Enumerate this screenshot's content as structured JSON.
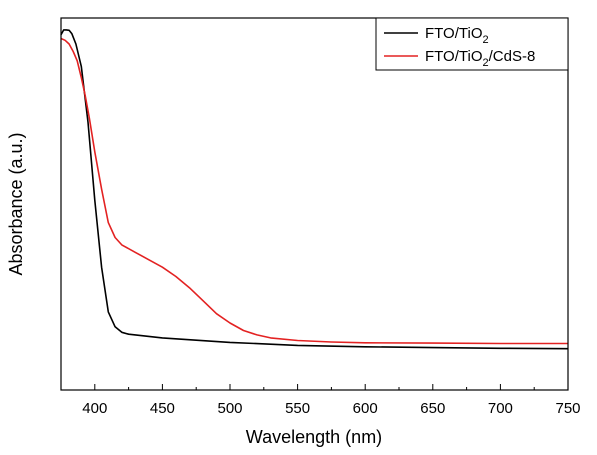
{
  "chart_data": {
    "type": "line",
    "title": "",
    "xlabel": "Wavelength (nm)",
    "ylabel": "Absorbance (a.u.)",
    "xlim": [
      375,
      750
    ],
    "ylim": [
      0,
      1
    ],
    "xticks": [
      400,
      450,
      500,
      550,
      600,
      650,
      700,
      750
    ],
    "xtick_labels": [
      "400",
      "450",
      "500",
      "550",
      "600",
      "650",
      "700",
      "750"
    ],
    "y_tick_labels_shown": false,
    "grid": false,
    "legend_position": "top-right",
    "series": [
      {
        "name": "FTO/TiO2",
        "legend_main": "FTO/TiO",
        "legend_sub": "2",
        "legend_tail": "",
        "color": "#000000",
        "x": [
          375,
          377,
          379,
          381,
          383,
          386,
          390,
          395,
          400,
          405,
          410,
          415,
          420,
          425,
          430,
          450,
          500,
          550,
          600,
          650,
          700,
          750
        ],
        "y": [
          0.955,
          0.968,
          0.968,
          0.967,
          0.958,
          0.93,
          0.87,
          0.72,
          0.51,
          0.33,
          0.21,
          0.17,
          0.155,
          0.15,
          0.148,
          0.14,
          0.128,
          0.12,
          0.116,
          0.114,
          0.112,
          0.111
        ]
      },
      {
        "name": "FTO/TiO2/CdS-8",
        "legend_main": "FTO/TiO",
        "legend_sub": "2",
        "legend_tail": "/CdS-8",
        "color": "#e32222",
        "x": [
          375,
          378,
          381,
          384,
          387,
          390,
          393,
          396,
          400,
          405,
          410,
          415,
          420,
          430,
          440,
          450,
          460,
          470,
          480,
          490,
          500,
          510,
          520,
          530,
          550,
          575,
          600,
          650,
          700,
          750
        ],
        "y": [
          0.945,
          0.94,
          0.93,
          0.91,
          0.885,
          0.84,
          0.79,
          0.73,
          0.64,
          0.54,
          0.45,
          0.41,
          0.39,
          0.37,
          0.35,
          0.33,
          0.305,
          0.275,
          0.24,
          0.205,
          0.18,
          0.16,
          0.148,
          0.14,
          0.133,
          0.129,
          0.127,
          0.126,
          0.125,
          0.125
        ]
      }
    ]
  }
}
